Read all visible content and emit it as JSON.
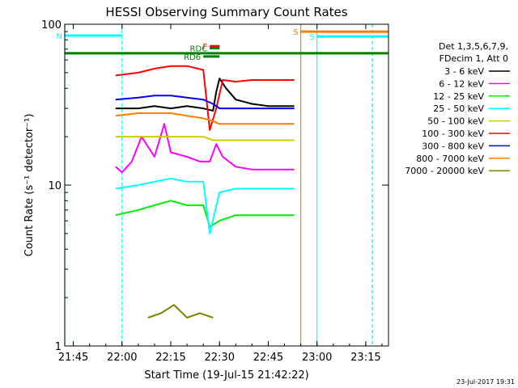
{
  "chart_data": {
    "type": "line",
    "title": "HESSI Observing Summary Count Rates",
    "xlabel": "Start Time (19-Jul-15 21:42:22)",
    "ylabel": "Count Rate (s⁻¹ detector⁻¹)",
    "yscale": "log",
    "ylim": [
      1,
      100
    ],
    "xlim": [
      "21:42",
      "23:22"
    ],
    "x_ticks": [
      "21:45",
      "22:00",
      "22:15",
      "22:30",
      "22:45",
      "23:00",
      "23:15"
    ],
    "y_ticks": [
      "1",
      "10",
      "100"
    ],
    "grid": false,
    "legend_position": "right",
    "legend_header": [
      "Det 1,3,5,6,7,9,",
      "FDecim 1, Att 0"
    ],
    "date_stamp": "23-Jul-2017 19:31",
    "series": [
      {
        "name": "3 - 6 keV",
        "color": "#000000",
        "x": [
          "21:58",
          "22:05",
          "22:10",
          "22:15",
          "22:20",
          "22:25",
          "22:28",
          "22:29",
          "22:30",
          "22:32",
          "22:35",
          "22:40",
          "22:45",
          "22:50",
          "22:53"
        ],
        "y": [
          30,
          30,
          31,
          30,
          31,
          30,
          29,
          38,
          46,
          40,
          34,
          32,
          31,
          31,
          31
        ]
      },
      {
        "name": "6 - 12 keV",
        "color": "#ff00ff",
        "x": [
          "21:58",
          "22:00",
          "22:03",
          "22:06",
          "22:10",
          "22:13",
          "22:15",
          "22:20",
          "22:24",
          "22:27",
          "22:29",
          "22:31",
          "22:35",
          "22:40",
          "22:45",
          "22:50",
          "22:53"
        ],
        "y": [
          13,
          12,
          14,
          20,
          15,
          24,
          16,
          15,
          14,
          14,
          18,
          15,
          13,
          12.5,
          12.5,
          12.5,
          12.5
        ]
      },
      {
        "name": "12 - 25 keV",
        "color": "#00ee00",
        "x": [
          "21:58",
          "22:05",
          "22:10",
          "22:15",
          "22:20",
          "22:25",
          "22:27",
          "22:30",
          "22:35",
          "22:40",
          "22:45",
          "22:50",
          "22:53"
        ],
        "y": [
          6.5,
          7,
          7.5,
          8,
          7.5,
          7.5,
          5.5,
          6,
          6.5,
          6.5,
          6.5,
          6.5,
          6.5
        ]
      },
      {
        "name": "25 - 50 keV",
        "color": "#00ffff",
        "x": [
          "21:58",
          "22:05",
          "22:10",
          "22:15",
          "22:20",
          "22:25",
          "22:27",
          "22:30",
          "22:35",
          "22:40",
          "22:45",
          "22:50",
          "22:53"
        ],
        "y": [
          9.5,
          10,
          10.5,
          11,
          10.5,
          10.5,
          5,
          9,
          9.5,
          9.5,
          9.5,
          9.5,
          9.5
        ]
      },
      {
        "name": "50 - 100 keV",
        "color": "#cccc00",
        "x": [
          "21:58",
          "22:05",
          "22:10",
          "22:15",
          "22:20",
          "22:25",
          "22:28",
          "22:30",
          "22:35",
          "22:40",
          "22:45",
          "22:50",
          "22:53"
        ],
        "y": [
          20,
          20,
          20,
          20,
          20,
          20,
          19,
          19,
          19,
          19,
          19,
          19,
          19
        ]
      },
      {
        "name": "100 - 300 keV",
        "color": "#ff0000",
        "x": [
          "21:58",
          "22:05",
          "22:10",
          "22:15",
          "22:20",
          "22:25",
          "22:27",
          "22:29",
          "22:31",
          "22:35",
          "22:40",
          "22:45",
          "22:50",
          "22:53"
        ],
        "y": [
          48,
          50,
          53,
          55,
          55,
          52,
          22,
          30,
          45,
          44,
          45,
          45,
          45,
          45
        ]
      },
      {
        "name": "300 - 800 keV",
        "color": "#0000ff",
        "x": [
          "21:58",
          "22:05",
          "22:10",
          "22:15",
          "22:20",
          "22:25",
          "22:28",
          "22:30",
          "22:35",
          "22:40",
          "22:45",
          "22:50",
          "22:53"
        ],
        "y": [
          34,
          35,
          36,
          36,
          35,
          34,
          32,
          30,
          30,
          30,
          30,
          30,
          30
        ]
      },
      {
        "name": "800 - 7000 keV",
        "color": "#ff7f00",
        "x": [
          "21:58",
          "22:05",
          "22:10",
          "22:15",
          "22:20",
          "22:25",
          "22:28",
          "22:30",
          "22:35",
          "22:40",
          "22:45",
          "22:50",
          "22:53"
        ],
        "y": [
          27,
          28,
          28,
          28,
          27,
          26,
          25,
          24,
          24,
          24,
          24,
          24,
          24
        ]
      },
      {
        "name": "7000 - 20000 keV",
        "color": "#808000",
        "x": [
          "22:08",
          "22:12",
          "22:16",
          "22:20",
          "22:24",
          "22:28"
        ],
        "y": [
          1.5,
          1.6,
          1.8,
          1.5,
          1.6,
          1.5
        ]
      }
    ],
    "flags": [
      {
        "label": "N",
        "color": "#00ffff",
        "start": "21:42",
        "end": "22:00",
        "y": 85
      },
      {
        "label": "S",
        "color": "#ff7f00",
        "start": "22:55",
        "end": "23:22",
        "y": 90
      },
      {
        "label": "S",
        "color": "#00ffff",
        "start": "23:00",
        "end": "23:22",
        "y": 84
      },
      {
        "label": "F",
        "color": "#ff0000",
        "start": "22:27",
        "end": "22:30",
        "y": 73
      },
      {
        "label": "RD6",
        "color": "#008000",
        "start": "22:25",
        "end": "22:30",
        "y": 63
      },
      {
        "label": "RDC",
        "color": "#008000",
        "start": "22:27",
        "end": "22:30",
        "y": 71
      },
      {
        "label": "",
        "color": "#008000",
        "start": "21:42",
        "end": "23:22",
        "y": 66
      }
    ],
    "markers": [
      {
        "color": "#00ffff",
        "style": "solid",
        "time": "21:42"
      },
      {
        "color": "#00ffff",
        "style": "dashed",
        "time": "22:00"
      },
      {
        "color": "#ff7f00",
        "style": "solid",
        "time": "22:55"
      },
      {
        "color": "#00ffff",
        "style": "solid",
        "time": "23:00"
      },
      {
        "color": "#ff7f00",
        "style": "dashed",
        "time": "23:17"
      },
      {
        "color": "#00ffff",
        "style": "dashed",
        "time": "23:17"
      }
    ]
  }
}
